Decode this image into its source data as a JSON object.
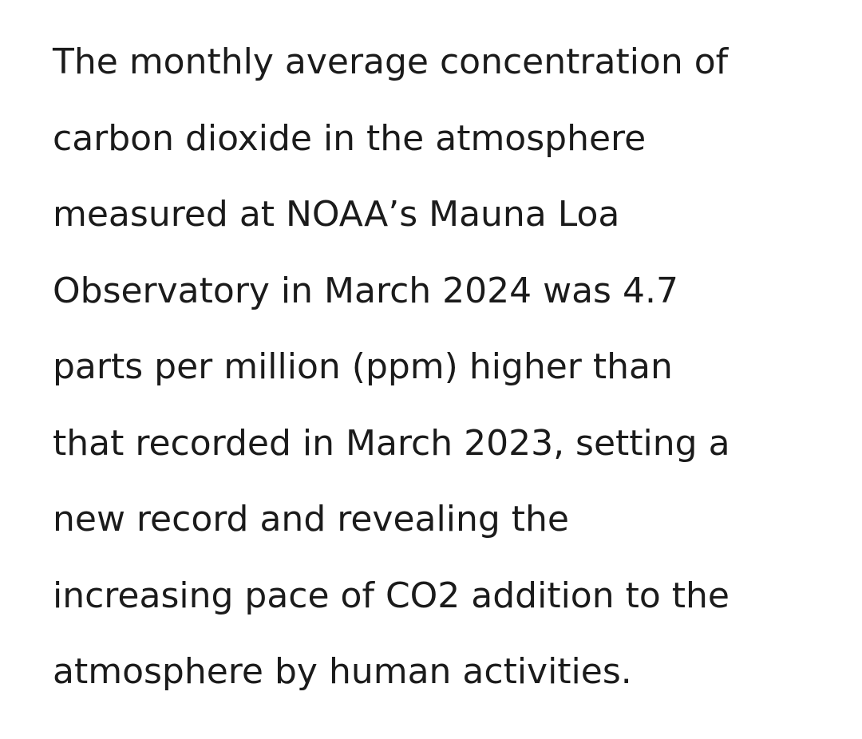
{
  "article": {
    "lines": [
      "The monthly average concentration of",
      "carbon dioxide in the atmosphere",
      "measured at NOAA’s Mauna Loa",
      "Observatory in March 2024 was 4.7",
      "parts per million (ppm) higher than",
      "that recorded in March 2023, setting a",
      "new record and revealing the",
      "increasing pace of CO2 addition to the",
      "atmosphere by human activities."
    ]
  },
  "colors": {
    "text": "#1b1b1b",
    "background": "#ffffff"
  }
}
